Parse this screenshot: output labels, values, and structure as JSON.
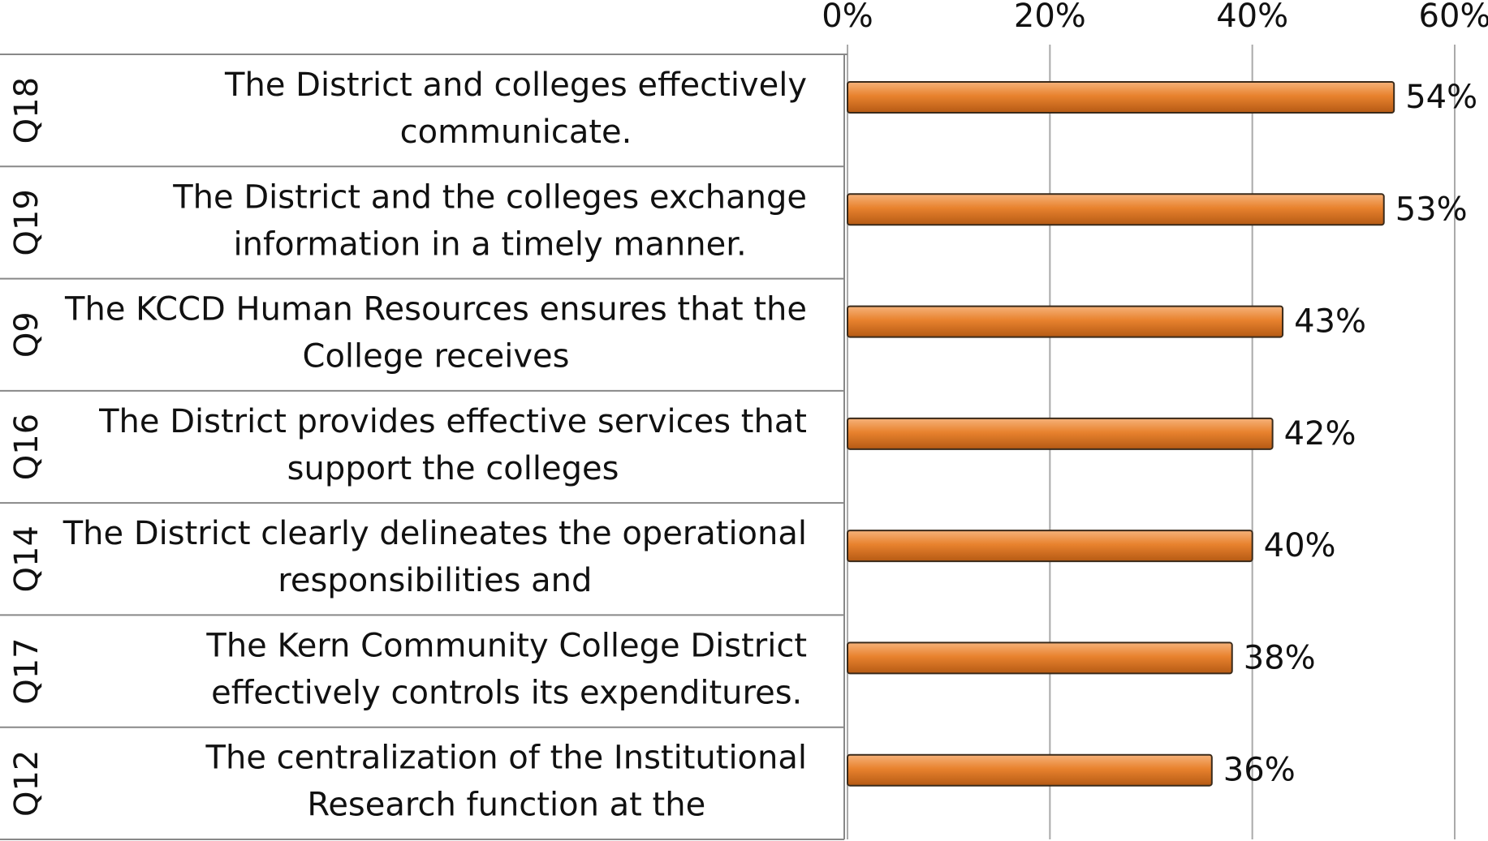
{
  "chart_data": {
    "type": "bar",
    "codes": [
      "Q18",
      "Q19",
      "Q9",
      "Q16",
      "Q14",
      "Q17",
      "Q12"
    ],
    "categories": [
      [
        "The District and colleges effectively",
        "communicate."
      ],
      [
        "The District and the colleges exchange",
        "information in a timely manner."
      ],
      [
        "The KCCD Human Resources ensures that the",
        "College receives"
      ],
      [
        "The District provides effective services that",
        "support the colleges"
      ],
      [
        "The District clearly delineates the operational",
        "responsibilities and"
      ],
      [
        "The Kern Community College District",
        "effectively controls its expenditures."
      ],
      [
        "The centralization of the Institutional",
        "Research function at the"
      ]
    ],
    "values": [
      54,
      53,
      43,
      42,
      40,
      38,
      36
    ],
    "value_labels": [
      "54%",
      "53%",
      "43%",
      "42%",
      "40%",
      "38%",
      "36%"
    ],
    "color": "#e8822e",
    "xlim": [
      0,
      60
    ],
    "xticks": [
      {
        "value": 0,
        "label": "0%"
      },
      {
        "value": 20,
        "label": "20%"
      },
      {
        "value": 40,
        "label": "40%"
      },
      {
        "value": 60,
        "label": "60%"
      }
    ],
    "grid": true
  }
}
